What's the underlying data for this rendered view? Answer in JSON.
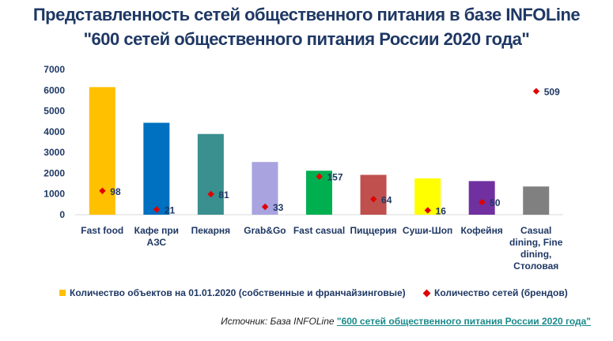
{
  "title_line1": "Представленность сетей общественного питания в базе INFOLine",
  "title_line2": "\"600 сетей общественного питания России 2020 года\"",
  "chart_data": {
    "type": "bar",
    "categories": [
      "Fast food",
      "Кафе при АЗС",
      "Пекарня",
      "Grab&Go",
      "Fast casual",
      "Пиццерия",
      "Суши-Шоп",
      "Кофейня",
      "Casual dining, Fine dining, Столовая"
    ],
    "category_lines": [
      [
        "Fast food"
      ],
      [
        "Кафе при",
        "АЗС"
      ],
      [
        "Пекарня"
      ],
      [
        "Grab&Go"
      ],
      [
        "Fast casual"
      ],
      [
        "Пиццерия"
      ],
      [
        "Суши-Шоп"
      ],
      [
        "Кофейня"
      ],
      [
        "Casual",
        "dining, Fine",
        "dining,",
        "Столовая"
      ]
    ],
    "ylim": [
      0,
      7000
    ],
    "yticks": [
      0,
      1000,
      2000,
      3000,
      4000,
      5000,
      6000,
      7000
    ],
    "series": [
      {
        "name": "Количество объектов на 01.01.2020 (собственные и франчайзинговые)",
        "type": "bar",
        "values": [
          6150,
          4430,
          3890,
          2540,
          2120,
          1920,
          1750,
          1620,
          1360
        ],
        "colors": [
          "#ffc000",
          "#0070c0",
          "#3a8f8f",
          "#a9a4e0",
          "#00b050",
          "#c0504d",
          "#ffff00",
          "#7030a0",
          "#808080"
        ]
      },
      {
        "name": "Количество сетей (брендов)",
        "type": "scatter",
        "values": [
          98,
          21,
          81,
          33,
          157,
          64,
          16,
          50,
          509
        ],
        "plot_heights": [
          1150,
          250,
          990,
          380,
          1840,
          750,
          210,
          600,
          5950
        ],
        "color": "#e00000"
      }
    ]
  },
  "legend": {
    "bars_label": "Количество объектов на 01.01.2020 (собственные и франчайзинговые)",
    "markers_label": "Количество сетей (брендов)"
  },
  "source": {
    "prefix": "Источник:  База INFOLine ",
    "link_text": "\"600 сетей общественного питания России 2020 года\""
  }
}
